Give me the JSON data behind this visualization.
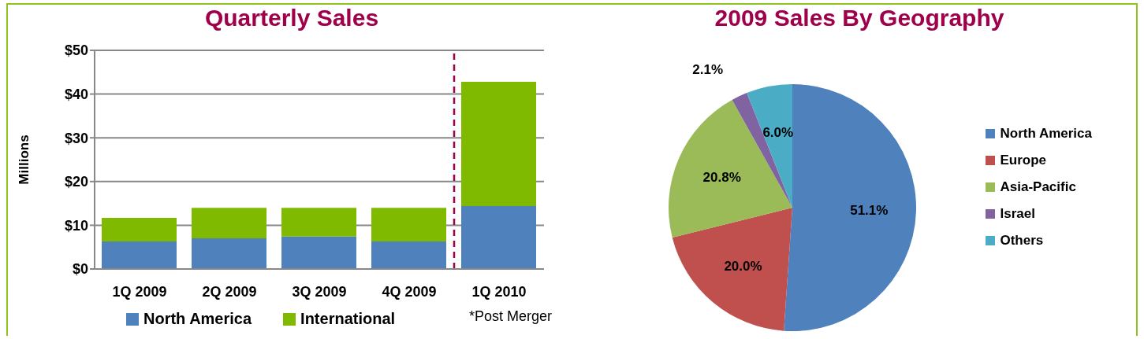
{
  "chart_data": [
    {
      "type": "bar",
      "title": "Quarterly Sales",
      "ylabel": "Millions",
      "categories": [
        "1Q 2009",
        "2Q 2009",
        "3Q 2009",
        "4Q 2009",
        "1Q 2010"
      ],
      "stacked": true,
      "series": [
        {
          "name": "North America",
          "color": "#4f81bd",
          "values": [
            6.3,
            7.0,
            7.4,
            6.3,
            14.4
          ]
        },
        {
          "name": "International",
          "color": "#7fba00",
          "values": [
            5.4,
            7.0,
            6.6,
            7.7,
            28.4
          ]
        }
      ],
      "ylim": [
        0,
        50
      ],
      "yticks": [
        {
          "value": 0,
          "label": "$0"
        },
        {
          "value": 10,
          "label": "$10"
        },
        {
          "value": 20,
          "label": "$20"
        },
        {
          "value": 30,
          "label": "$30"
        },
        {
          "value": 40,
          "label": "$40"
        },
        {
          "value": 50,
          "label": "$50"
        }
      ],
      "grid": "y",
      "legend": "bottom",
      "ref_lines": [
        {
          "axis": "x",
          "value": "1Q 2010",
          "color": "#a0004a",
          "line_style": "dashed"
        }
      ],
      "annotations": [
        "*Post Merger"
      ]
    },
    {
      "type": "pie",
      "title": "2009 Sales By Geography",
      "categories": [
        "North America",
        "Europe",
        "Asia-Pacific",
        "Israel",
        "Others"
      ],
      "values": [
        51.1,
        20.0,
        20.8,
        2.1,
        6.0
      ],
      "colors": [
        "#4f81bd",
        "#c0504d",
        "#9bbb59",
        "#8064a2",
        "#4bacc6"
      ],
      "value_labels": [
        "51.1%",
        "20.0%",
        "20.8%",
        "2.1%",
        "6.0%"
      ],
      "legend": "right"
    }
  ]
}
